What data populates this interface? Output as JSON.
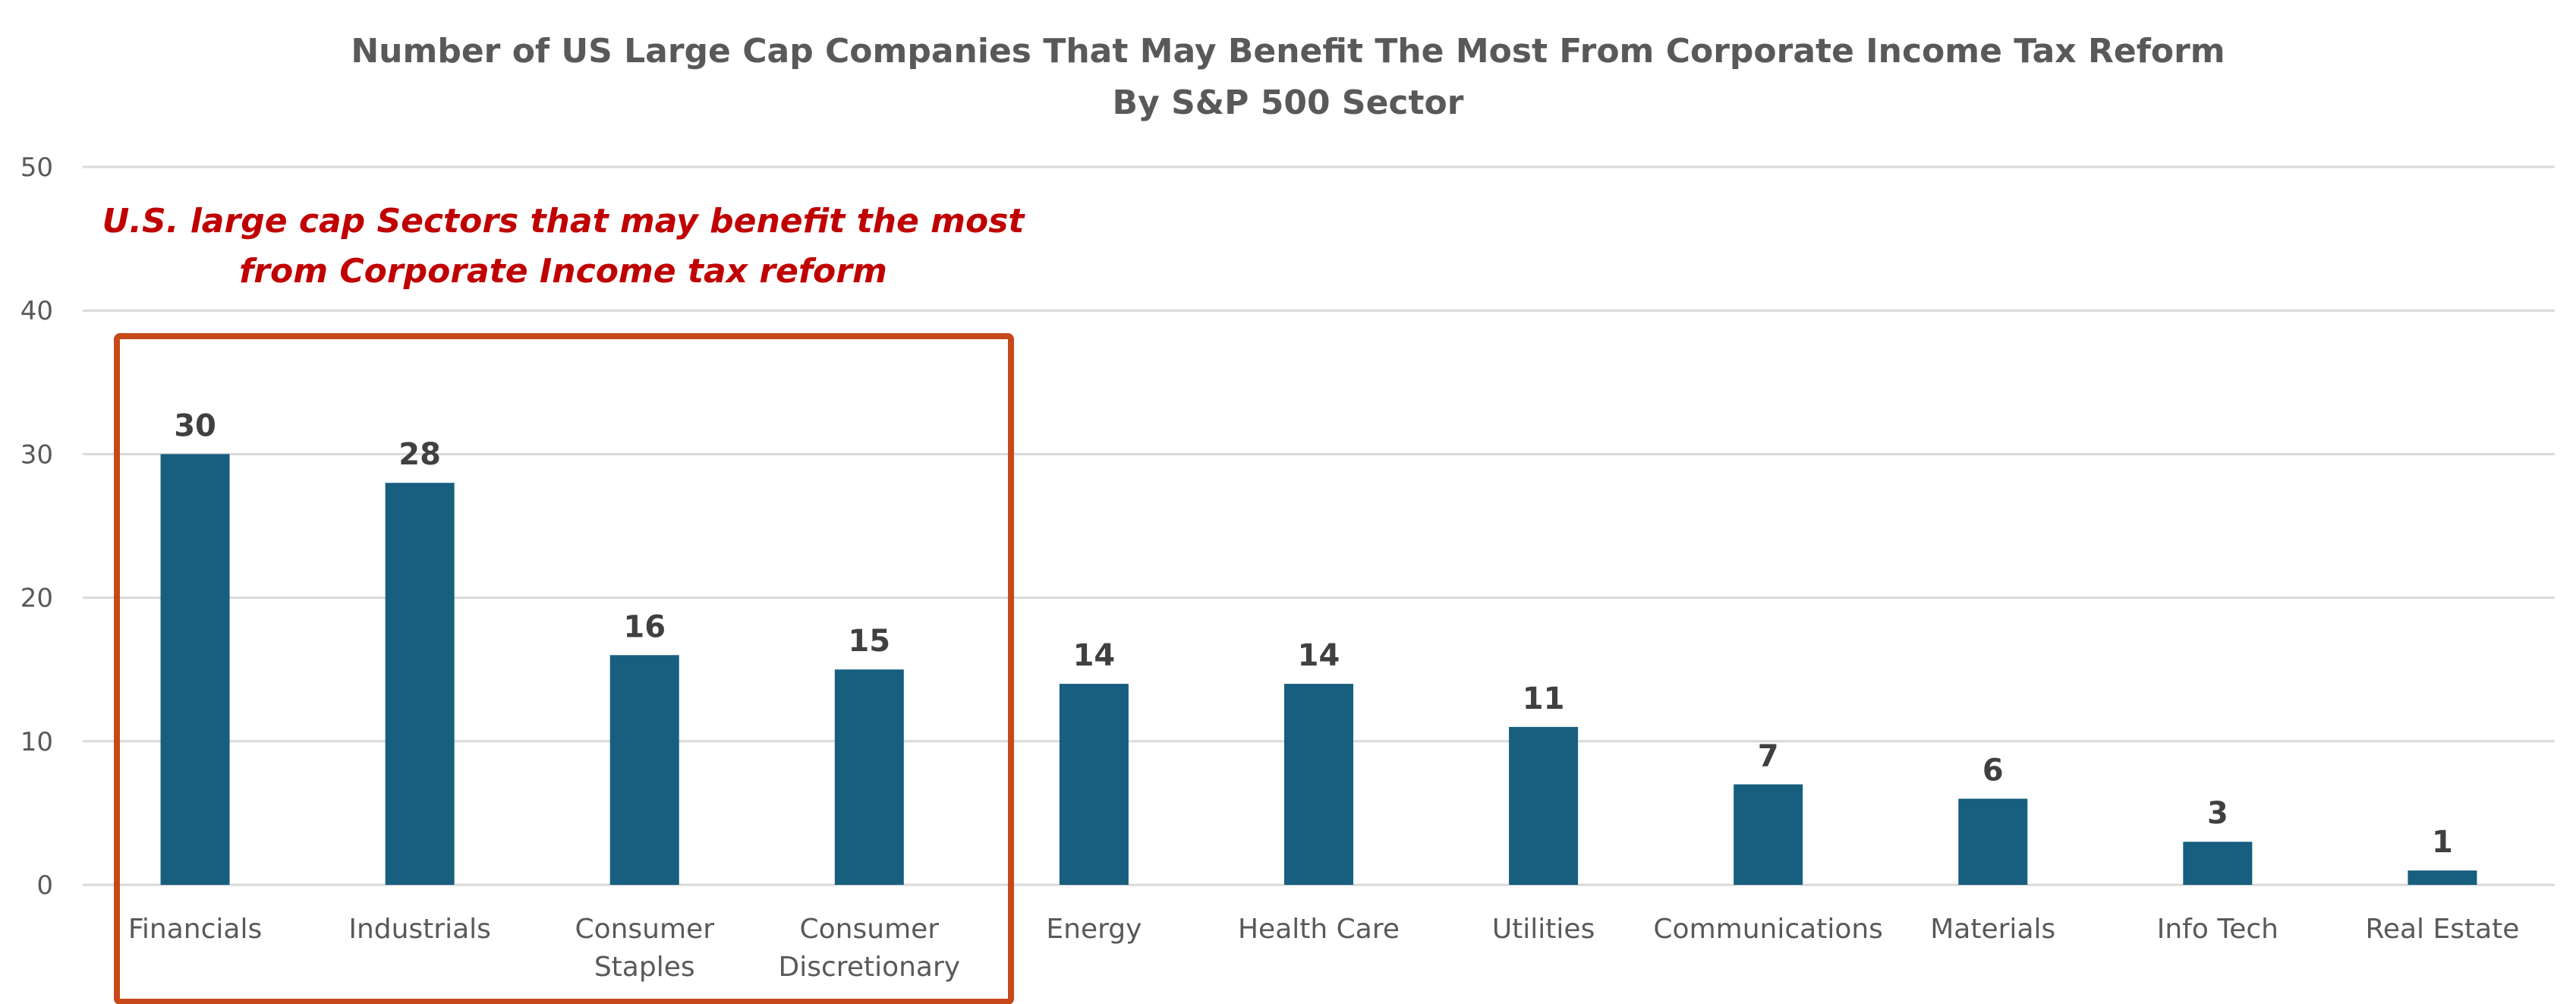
{
  "chart_data": {
    "type": "bar",
    "title": "Number of US Large Cap Companies That May Benefit The Most From Corporate Income Tax Reform",
    "subtitle": "By S&P 500 Sector",
    "xlabel": "",
    "ylabel": "",
    "ylim": [
      0,
      50
    ],
    "yticks": [
      "0",
      "10",
      "20",
      "30",
      "40",
      "50"
    ],
    "grid": true,
    "categories": [
      [
        "Financials"
      ],
      [
        "Industrials"
      ],
      [
        "Consumer",
        "Staples"
      ],
      [
        "Consumer",
        "Discretionary"
      ],
      [
        "Energy"
      ],
      [
        "Health Care"
      ],
      [
        "Utilities"
      ],
      [
        "Communications"
      ],
      [
        "Materials"
      ],
      [
        "Info Tech"
      ],
      [
        "Real Estate"
      ]
    ],
    "values": [
      30,
      28,
      16,
      15,
      14,
      14,
      11,
      7,
      6,
      3,
      1
    ],
    "data_labels": [
      "30",
      "28",
      "16",
      "15",
      "14",
      "14",
      "11",
      "7",
      "6",
      "3",
      "1"
    ],
    "bar_color": "#175e7f",
    "annotation": {
      "lines": [
        "U.S. large cap Sectors that may benefit the most",
        "from Corporate Income tax reform"
      ],
      "color": "#c00000",
      "highlight_box_color": "#c5491a",
      "highlighted_categories": [
        "Financials",
        "Industrials",
        "Consumer Staples",
        "Consumer Discretionary"
      ]
    }
  }
}
